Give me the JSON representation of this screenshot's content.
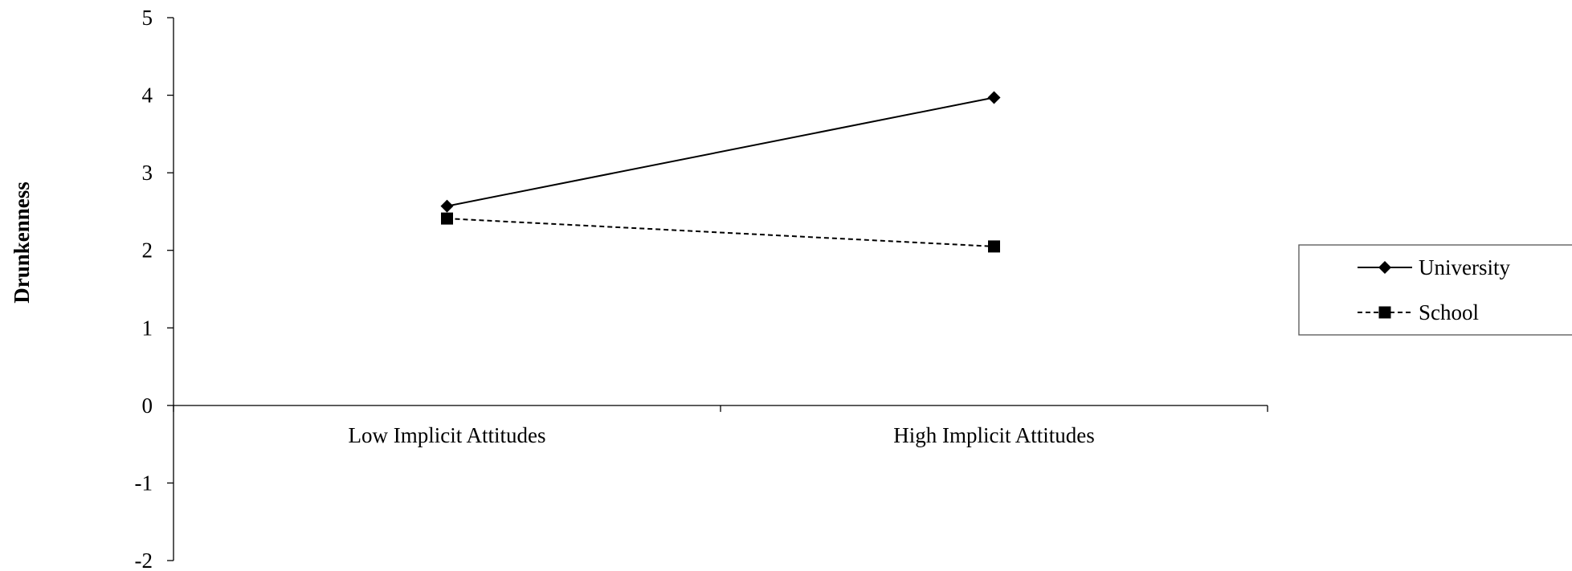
{
  "chart_data": {
    "type": "line",
    "title": "",
    "xlabel": "",
    "ylabel": "Drunkenness",
    "categories": [
      "Low Implicit Attitudes",
      "High Implicit Attitudes"
    ],
    "ylim": [
      -2,
      5
    ],
    "yticks": [
      5,
      4,
      3,
      2,
      1,
      0,
      -1,
      -2
    ],
    "grid": false,
    "legend_position": "right",
    "series": [
      {
        "name": "University",
        "values": [
          2.57,
          3.97
        ],
        "line_style": "solid",
        "marker": "diamond",
        "color": "#000000"
      },
      {
        "name": "School",
        "values": [
          2.41,
          2.05
        ],
        "line_style": "dashed",
        "marker": "square",
        "color": "#000000"
      }
    ]
  }
}
